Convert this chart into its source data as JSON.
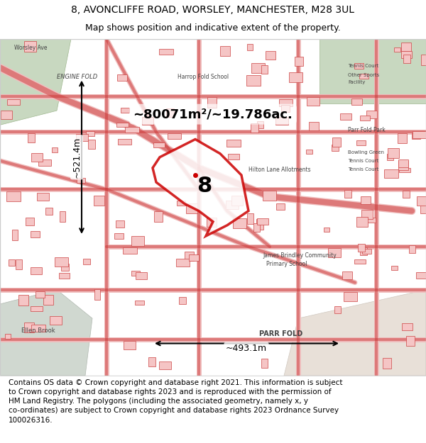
{
  "title_line1": "8, AVONCLIFFE ROAD, WORSLEY, MANCHESTER, M28 3UL",
  "title_line2": "Map shows position and indicative extent of the property.",
  "area_label": "~80071m²/~19.786ac.",
  "property_number": "8",
  "dim_vertical": "~521.4m",
  "dim_horizontal": "~493.1m",
  "footer_line1": "Contains OS data © Crown copyright and database right 2021. This information is subject",
  "footer_line2": "to Crown copyright and database rights 2023 and is reproduced with the permission of",
  "footer_line3": "HM Land Registry. The polygons (including the associated geometry, namely x, y",
  "footer_line4": "co-ordinates) are subject to Crown copyright and database rights 2023 Ordnance Survey",
  "footer_line5": "100026316.",
  "bg_color": "#f5f0eb",
  "map_bg": "#f2ede8",
  "road_color": "#cc3333",
  "road_fill": "#f5c5c5",
  "green_area": "#c8ddc0",
  "highlight_polygon_fill": "rgba(255,255,255,0.3)",
  "highlight_polygon_stroke": "#cc0000",
  "title_fontsize": 10,
  "subtitle_fontsize": 9,
  "footer_fontsize": 7.5,
  "fig_width": 6.0,
  "fig_height": 6.25
}
